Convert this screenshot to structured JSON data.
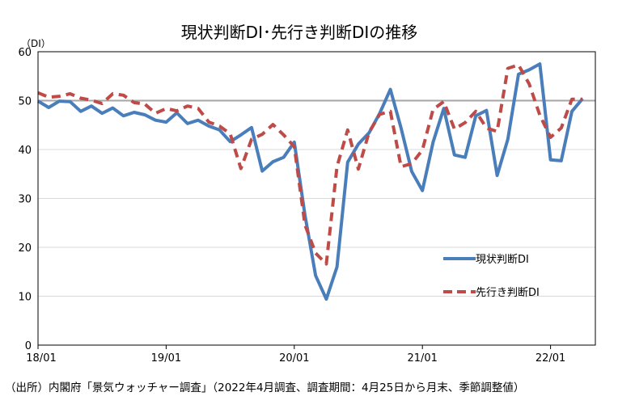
{
  "chart_data": {
    "type": "line",
    "title": "現状判断DI･先行き判断DIの推移",
    "unit_label": "（DI）",
    "ylim": [
      0,
      60
    ],
    "yticks": [
      0,
      10,
      20,
      30,
      40,
      50,
      60
    ],
    "xticks": [
      "18/01",
      "19/01",
      "20/01",
      "21/01",
      "22/01"
    ],
    "reference_line": 50,
    "grid": "horizontal",
    "legend_position": "right",
    "x": [
      "18/01",
      "18/02",
      "18/03",
      "18/04",
      "18/05",
      "18/06",
      "18/07",
      "18/08",
      "18/09",
      "18/10",
      "18/11",
      "18/12",
      "19/01",
      "19/02",
      "19/03",
      "19/04",
      "19/05",
      "19/06",
      "19/07",
      "19/08",
      "19/09",
      "19/10",
      "19/11",
      "19/12",
      "20/01",
      "20/02",
      "20/03",
      "20/04",
      "20/05",
      "20/06",
      "20/07",
      "20/08",
      "20/09",
      "20/10",
      "20/11",
      "20/12",
      "21/01",
      "21/02",
      "21/03",
      "21/04",
      "21/05",
      "21/06",
      "21/07",
      "21/08",
      "21/09",
      "21/10",
      "21/11",
      "21/12",
      "22/01",
      "22/02",
      "22/03",
      "22/04"
    ],
    "series": [
      {
        "name": "現状判断DI",
        "color": "#4a7ebb",
        "style": "solid",
        "values": [
          49.9,
          48.6,
          49.9,
          49.8,
          47.8,
          48.9,
          47.4,
          48.5,
          46.9,
          47.6,
          47.1,
          46.0,
          45.6,
          47.5,
          45.3,
          46.0,
          44.8,
          44.0,
          41.6,
          43.0,
          44.5,
          35.6,
          37.5,
          38.4,
          41.5,
          26.6,
          14.2,
          9.4,
          16.0,
          37.4,
          41.1,
          43.4,
          47.4,
          52.3,
          44.4,
          35.5,
          31.6,
          41.5,
          48.4,
          38.9,
          38.4,
          46.9,
          48.0,
          34.7,
          42.1,
          55.4,
          56.3,
          57.5,
          37.9,
          37.7,
          47.8,
          50.4
        ]
      },
      {
        "name": "先行き判断DI",
        "color": "#be4b48",
        "style": "dashed",
        "values": [
          51.6,
          50.7,
          50.9,
          51.4,
          50.5,
          50.1,
          49.4,
          51.4,
          51.1,
          49.6,
          49.3,
          47.4,
          48.4,
          47.9,
          48.9,
          48.4,
          45.6,
          44.8,
          43.2,
          36.1,
          42.1,
          43.1,
          45.1,
          43.0,
          40.6,
          24.6,
          18.8,
          16.6,
          36.5,
          44.0,
          36.0,
          43.5,
          47.2,
          47.8,
          36.5,
          37.1,
          39.9,
          48.2,
          49.8,
          44.2,
          45.5,
          47.8,
          44.4,
          43.7,
          56.6,
          57.3,
          53.4,
          47.0,
          42.5,
          44.4,
          50.3,
          50.3
        ]
      }
    ]
  },
  "source_note": "（出所）内閣府「景気ウォッチャー調査」（2022年4月調査、調査期間：4月25日から月末、季節調整値）"
}
